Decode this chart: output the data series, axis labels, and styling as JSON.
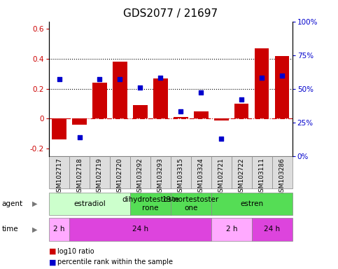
{
  "title": "GDS2077 / 21697",
  "samples": [
    "GSM102717",
    "GSM102718",
    "GSM102719",
    "GSM102720",
    "GSM103292",
    "GSM103293",
    "GSM103315",
    "GSM103324",
    "GSM102721",
    "GSM102722",
    "GSM103111",
    "GSM103286"
  ],
  "log10_ratio": [
    -0.14,
    -0.04,
    0.24,
    0.38,
    0.09,
    0.27,
    0.01,
    0.05,
    -0.01,
    0.1,
    0.47,
    0.42
  ],
  "percentile_rank": [
    0.57,
    0.14,
    0.57,
    0.57,
    0.51,
    0.58,
    0.33,
    0.47,
    0.13,
    0.42,
    0.58,
    0.6
  ],
  "bar_color": "#cc0000",
  "scatter_color": "#0000cc",
  "ylim_left": [
    -0.25,
    0.65
  ],
  "ylim_right": [
    0,
    1.0
  ],
  "yticks_left": [
    -0.2,
    0.0,
    0.2,
    0.4,
    0.6
  ],
  "yticks_right": [
    0.0,
    0.25,
    0.5,
    0.75,
    1.0
  ],
  "yticklabels_left": [
    "-0.2",
    "0",
    "0.2",
    "0.4",
    "0.6"
  ],
  "yticklabels_right": [
    "0%",
    "25%",
    "50%",
    "75%",
    "100%"
  ],
  "hline0_color": "#cc0000",
  "hline_color": "black",
  "agent_row": [
    {
      "label": "estradiol",
      "start": 0,
      "end": 4,
      "color": "#ccffcc"
    },
    {
      "label": "dihydrotestoste\nrone",
      "start": 4,
      "end": 6,
      "color": "#55dd55"
    },
    {
      "label": "19-nortestoster\none",
      "start": 6,
      "end": 8,
      "color": "#55dd55"
    },
    {
      "label": "estren",
      "start": 8,
      "end": 12,
      "color": "#55dd55"
    }
  ],
  "time_row": [
    {
      "label": "2 h",
      "start": 0,
      "end": 1,
      "color": "#ffaaff"
    },
    {
      "label": "24 h",
      "start": 1,
      "end": 8,
      "color": "#dd44dd"
    },
    {
      "label": "2 h",
      "start": 8,
      "end": 10,
      "color": "#ffaaff"
    },
    {
      "label": "24 h",
      "start": 10,
      "end": 12,
      "color": "#dd44dd"
    }
  ],
  "legend_red_label": "log10 ratio",
  "legend_blue_label": "percentile rank within the sample",
  "tick_fontsize": 7.5,
  "title_fontsize": 11,
  "sample_fontsize": 6.5,
  "row_fontsize": 7.5
}
